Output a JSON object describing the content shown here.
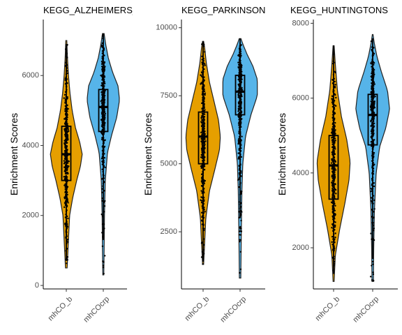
{
  "chart_data": [
    {
      "type": "violin",
      "title": "KEGG_ALZHEIMERS_",
      "ylabel": "Enrichment Scores",
      "xlabel": "",
      "categories": [
        "mhCO_b",
        "mhCOcrp"
      ],
      "ylim": [
        -100,
        7600
      ],
      "yticks": [
        0,
        2000,
        4000,
        6000
      ],
      "ytick_labels": [
        "0",
        "2000",
        "4000",
        "6000"
      ],
      "colors": [
        "#E69F00",
        "#56B4E9"
      ],
      "series": [
        {
          "box": {
            "lower_whisker": 700,
            "q1": 3000,
            "median": 3750,
            "q3": 4550,
            "upper_whisker": 6900
          },
          "density": [
            [
              500,
              0.05
            ],
            [
              1000,
              0.1
            ],
            [
              1500,
              0.15
            ],
            [
              2000,
              0.2
            ],
            [
              2500,
              0.38
            ],
            [
              3000,
              0.62
            ],
            [
              3400,
              0.84
            ],
            [
              3750,
              0.95
            ],
            [
              4100,
              0.8
            ],
            [
              4500,
              0.55
            ],
            [
              5000,
              0.35
            ],
            [
              5500,
              0.22
            ],
            [
              6000,
              0.13
            ],
            [
              6500,
              0.07
            ],
            [
              7000,
              0.03
            ]
          ]
        },
        {
          "box": {
            "lower_whisker": 1300,
            "q1": 4400,
            "median": 5100,
            "q3": 5600,
            "upper_whisker": 7200
          },
          "density": [
            [
              300,
              0.03
            ],
            [
              1000,
              0.05
            ],
            [
              2000,
              0.07
            ],
            [
              3000,
              0.12
            ],
            [
              3800,
              0.25
            ],
            [
              4300,
              0.5
            ],
            [
              4800,
              0.8
            ],
            [
              5300,
              0.97
            ],
            [
              5700,
              0.88
            ],
            [
              6100,
              0.55
            ],
            [
              6500,
              0.3
            ],
            [
              6900,
              0.14
            ],
            [
              7200,
              0.05
            ]
          ]
        }
      ]
    },
    {
      "type": "violin",
      "title": "KEGG_PARKINSONS",
      "ylabel": "Enrichment Scores",
      "xlabel": "",
      "categories": [
        "mhCO_b",
        "mhCOcrp"
      ],
      "ylim": [
        400,
        10300
      ],
      "yticks": [
        2500,
        5000,
        7500,
        10000
      ],
      "ytick_labels": [
        "2500",
        "5000",
        "7500",
        "10000"
      ],
      "colors": [
        "#E69F00",
        "#56B4E9"
      ],
      "series": [
        {
          "box": {
            "lower_whisker": 1400,
            "q1": 5000,
            "median": 6000,
            "q3": 6900,
            "upper_whisker": 9500
          },
          "density": [
            [
              1300,
              0.03
            ],
            [
              2000,
              0.08
            ],
            [
              3000,
              0.15
            ],
            [
              4000,
              0.35
            ],
            [
              4800,
              0.65
            ],
            [
              5500,
              0.9
            ],
            [
              6000,
              0.95
            ],
            [
              6600,
              0.85
            ],
            [
              7300,
              0.6
            ],
            [
              8000,
              0.35
            ],
            [
              8700,
              0.18
            ],
            [
              9300,
              0.08
            ],
            [
              9500,
              0.03
            ]
          ]
        },
        {
          "box": {
            "lower_whisker": 3000,
            "q1": 6800,
            "median": 7650,
            "q3": 8250,
            "upper_whisker": 9600
          },
          "density": [
            [
              800,
              0.04
            ],
            [
              2000,
              0.06
            ],
            [
              3000,
              0.08
            ],
            [
              4000,
              0.1
            ],
            [
              5000,
              0.15
            ],
            [
              6000,
              0.3
            ],
            [
              6800,
              0.6
            ],
            [
              7500,
              0.95
            ],
            [
              8100,
              0.95
            ],
            [
              8600,
              0.7
            ],
            [
              9000,
              0.4
            ],
            [
              9400,
              0.15
            ],
            [
              9600,
              0.05
            ]
          ]
        }
      ]
    },
    {
      "type": "violin",
      "title": "KEGG_HUNTINGTONS",
      "ylabel": "Enrichment Scores",
      "xlabel": "",
      "categories": [
        "mhCO_b",
        "mhCOcrp"
      ],
      "ylim": [
        900,
        8100
      ],
      "yticks": [
        2000,
        4000,
        6000,
        8000
      ],
      "ytick_labels": [
        "2000",
        "4000",
        "6000",
        "8000"
      ],
      "colors": [
        "#E69F00",
        "#56B4E9"
      ],
      "series": [
        {
          "box": {
            "lower_whisker": 1300,
            "q1": 3300,
            "median": 4200,
            "q3": 5000,
            "upper_whisker": 7400
          },
          "density": [
            [
              1100,
              0.03
            ],
            [
              1800,
              0.1
            ],
            [
              2500,
              0.35
            ],
            [
              3200,
              0.65
            ],
            [
              3800,
              0.88
            ],
            [
              4300,
              0.95
            ],
            [
              4900,
              0.75
            ],
            [
              5500,
              0.45
            ],
            [
              6200,
              0.22
            ],
            [
              6900,
              0.1
            ],
            [
              7400,
              0.03
            ]
          ]
        },
        {
          "box": {
            "lower_whisker": 1700,
            "q1": 4750,
            "median": 5550,
            "q3": 6100,
            "upper_whisker": 7600
          },
          "density": [
            [
              1100,
              0.04
            ],
            [
              2000,
              0.06
            ],
            [
              3000,
              0.1
            ],
            [
              4000,
              0.2
            ],
            [
              4700,
              0.4
            ],
            [
              5200,
              0.75
            ],
            [
              5700,
              0.97
            ],
            [
              6200,
              0.85
            ],
            [
              6700,
              0.5
            ],
            [
              7100,
              0.25
            ],
            [
              7500,
              0.08
            ],
            [
              7700,
              0.02
            ]
          ]
        }
      ]
    }
  ]
}
